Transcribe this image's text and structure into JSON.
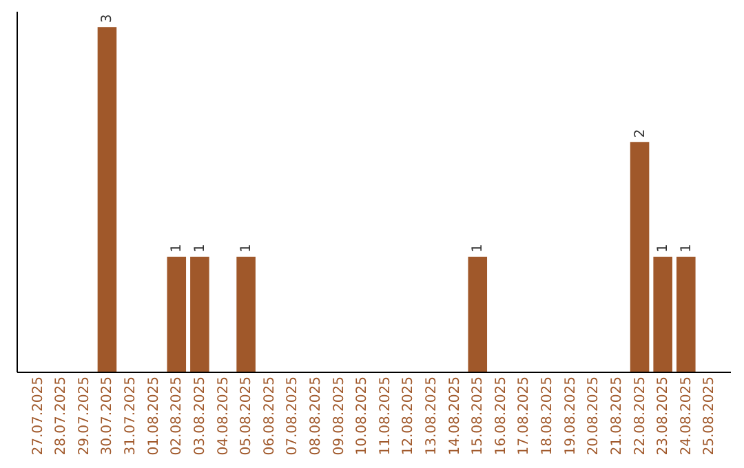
{
  "chart_data": {
    "type": "bar",
    "categories": [
      "27.07.2025",
      "28.07.2025",
      "29.07.2025",
      "30.07.2025",
      "31.07.2025",
      "01.08.2025",
      "02.08.2025",
      "03.08.2025",
      "04.08.2025",
      "05.08.2025",
      "06.08.2025",
      "07.08.2025",
      "08.08.2025",
      "09.08.2025",
      "10.08.2025",
      "11.08.2025",
      "12.08.2025",
      "13.08.2025",
      "14.08.2025",
      "15.08.2025",
      "16.08.2025",
      "17.08.2025",
      "18.08.2025",
      "19.08.2025",
      "20.08.2025",
      "21.08.2025",
      "22.08.2025",
      "23.08.2025",
      "24.08.2025",
      "25.08.2025"
    ],
    "values": [
      0,
      0,
      0,
      3,
      0,
      0,
      1,
      1,
      0,
      1,
      0,
      0,
      0,
      0,
      0,
      0,
      0,
      0,
      0,
      1,
      0,
      0,
      0,
      0,
      0,
      0,
      2,
      1,
      1,
      0
    ],
    "value_labels": [
      null,
      null,
      null,
      "3",
      null,
      null,
      "1",
      "1",
      null,
      "1",
      null,
      null,
      null,
      null,
      null,
      null,
      null,
      null,
      null,
      "1",
      null,
      null,
      null,
      null,
      null,
      null,
      "2",
      "1",
      "1",
      null
    ],
    "color": "#a0582a",
    "ylim": [
      0,
      3.14
    ],
    "tick_labels": "x",
    "grid": false
  }
}
